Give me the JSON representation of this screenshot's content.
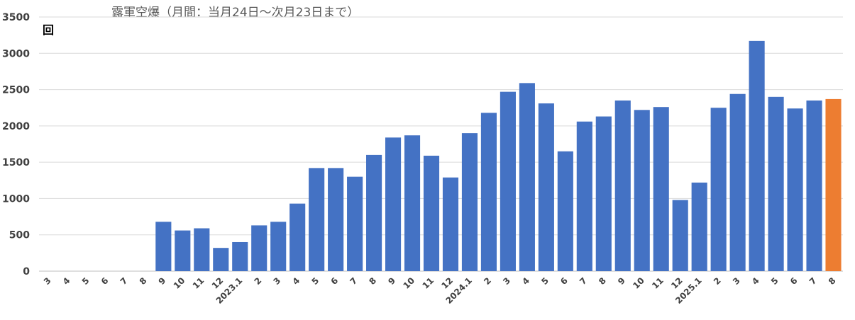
{
  "chart_data": {
    "type": "bar",
    "title": "露軍空爆（月間：当月24日～次月23日まで）",
    "ylabel": "回",
    "ylim": [
      0,
      3500
    ],
    "yticks": [
      0,
      500,
      1000,
      1500,
      2000,
      2500,
      3000,
      3500
    ],
    "grid": true,
    "categories": [
      "3",
      "4",
      "5",
      "6",
      "7",
      "8",
      "9",
      "10",
      "11",
      "12",
      "2023.1",
      "2",
      "3",
      "4",
      "5",
      "6",
      "7",
      "8",
      "9",
      "10",
      "11",
      "12",
      "2024.1",
      "2",
      "3",
      "4",
      "5",
      "6",
      "7",
      "8",
      "9",
      "10",
      "11",
      "12",
      "2025.1",
      "2",
      "3",
      "4",
      "5",
      "6",
      "7",
      "8"
    ],
    "values": [
      0,
      0,
      0,
      0,
      0,
      0,
      680,
      560,
      590,
      320,
      400,
      630,
      680,
      930,
      1420,
      1420,
      1300,
      1600,
      1840,
      1870,
      1590,
      1290,
      1900,
      2180,
      2470,
      2590,
      2310,
      1650,
      2060,
      2130,
      2350,
      2220,
      2260,
      980,
      1220,
      2250,
      2440,
      3170,
      2400,
      2240,
      2350,
      2370
    ],
    "colors": {
      "default": "#4472c4",
      "highlight": "#ed7d31"
    },
    "highlight_index": 41
  }
}
